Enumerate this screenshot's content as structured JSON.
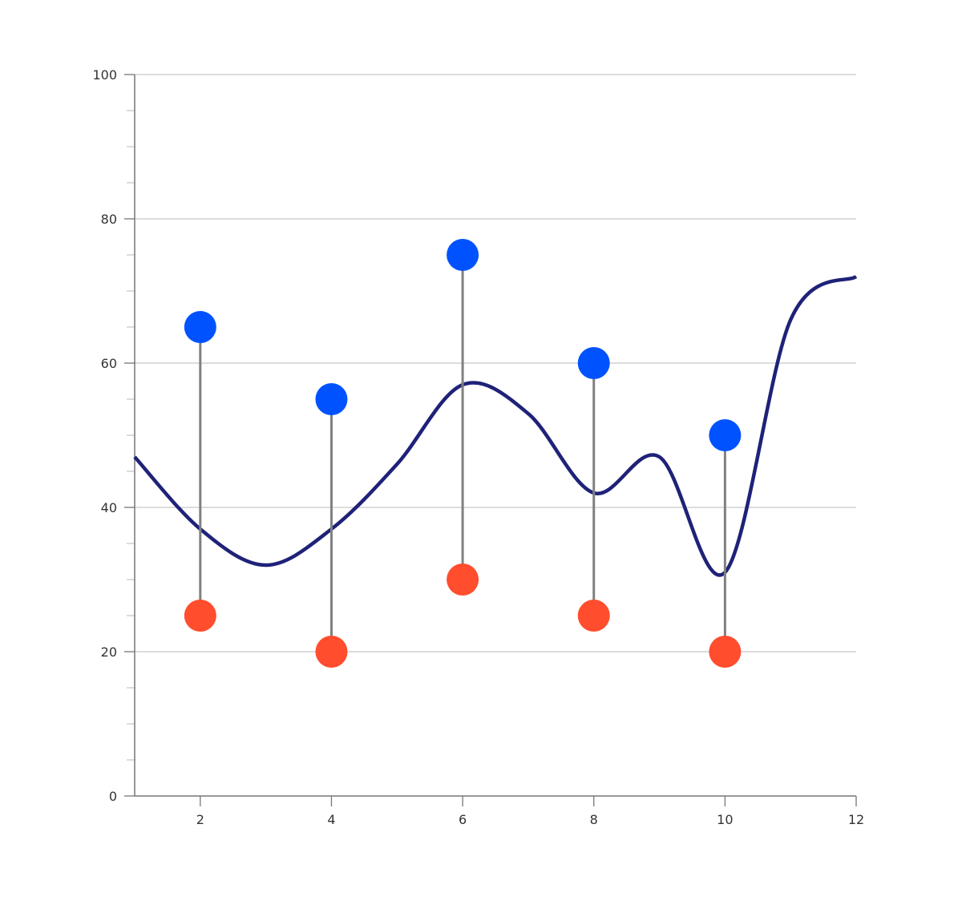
{
  "chart_data": {
    "type": "line",
    "subtype": "dumbbell-with-spline",
    "title": "",
    "xlabel": "",
    "ylabel": "",
    "xlim": [
      1,
      12
    ],
    "ylim": [
      0,
      100
    ],
    "x_ticks": [
      2,
      4,
      6,
      8,
      10,
      12
    ],
    "y_ticks": [
      0,
      20,
      40,
      60,
      80,
      100
    ],
    "y_minor_step": 5,
    "grid": {
      "y": true,
      "x": false
    },
    "legend": null,
    "series": [
      {
        "name": "dumbbell",
        "type": "dumbbell",
        "x": [
          2,
          4,
          6,
          8,
          10
        ],
        "low": [
          25,
          20,
          30,
          25,
          20
        ],
        "high": [
          65,
          55,
          75,
          60,
          50
        ],
        "low_color": "#FF4D2E",
        "high_color": "#0052FF",
        "connector_color": "#808080"
      },
      {
        "name": "spline",
        "type": "line",
        "smooth": true,
        "x": [
          1,
          2,
          3,
          4,
          5,
          6,
          7,
          8,
          9,
          10,
          11,
          12
        ],
        "values": [
          47,
          37,
          32,
          37,
          46,
          57,
          53,
          42,
          47,
          31,
          66,
          72
        ],
        "color": "#1F2278"
      }
    ]
  },
  "colors": {
    "grid": "#C8C8C8",
    "axis": "#777777",
    "tick_label": "#333333"
  }
}
